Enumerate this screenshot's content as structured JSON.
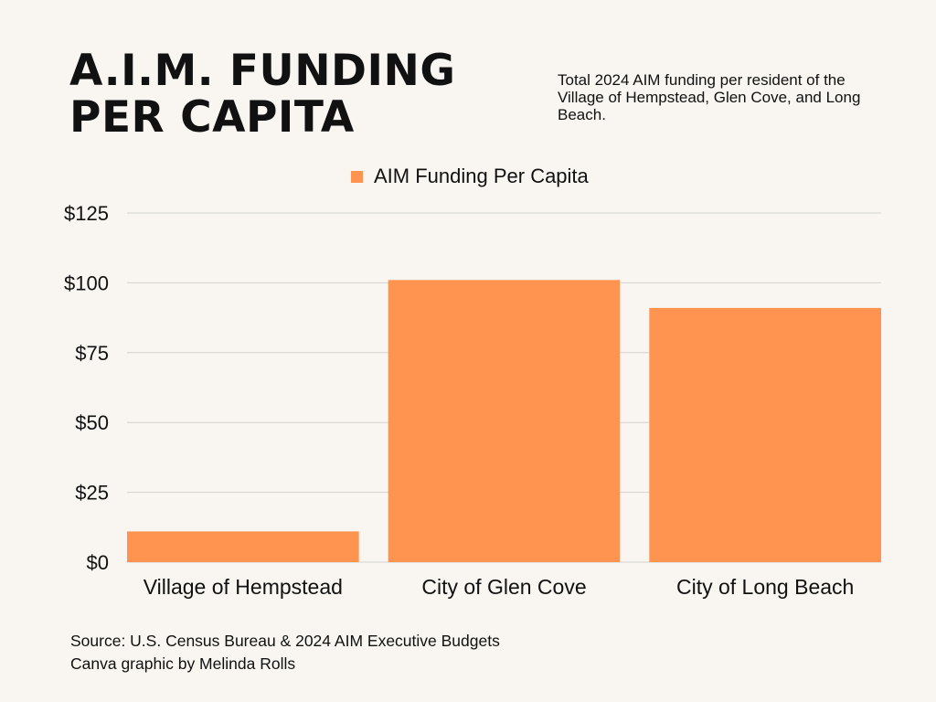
{
  "header": {
    "title_line1": "A.I.M. FUNDING",
    "title_line2": "PER CAPITA",
    "subtitle": "Total 2024 AIM funding per resident of the Village of Hempstead, Glen Cove, and Long Beach."
  },
  "footer": {
    "source": "Source: U.S. Census Bureau & 2024 AIM Executive Budgets",
    "credit": "Canva graphic by Melinda Rolls"
  },
  "colors": {
    "bar": "#fe9450",
    "background": "#f9f6f2",
    "grid": "#d4d1cc"
  },
  "chart_data": {
    "type": "bar",
    "title": "A.I.M. FUNDING PER CAPITA",
    "categories": [
      "Village of Hempstead",
      "City of Glen Cove",
      "City of Long Beach"
    ],
    "series": [
      {
        "name": "AIM Funding Per Capita",
        "values": [
          11,
          101,
          91
        ]
      }
    ],
    "ylim": [
      0,
      125
    ],
    "yticks": [
      0,
      25,
      50,
      75,
      100,
      125
    ],
    "ytick_labels": [
      "$0",
      "$25",
      "$50",
      "$75",
      "$100",
      "$125"
    ],
    "xlabel": "",
    "ylabel": "",
    "grid": true,
    "legend_position": "top"
  }
}
